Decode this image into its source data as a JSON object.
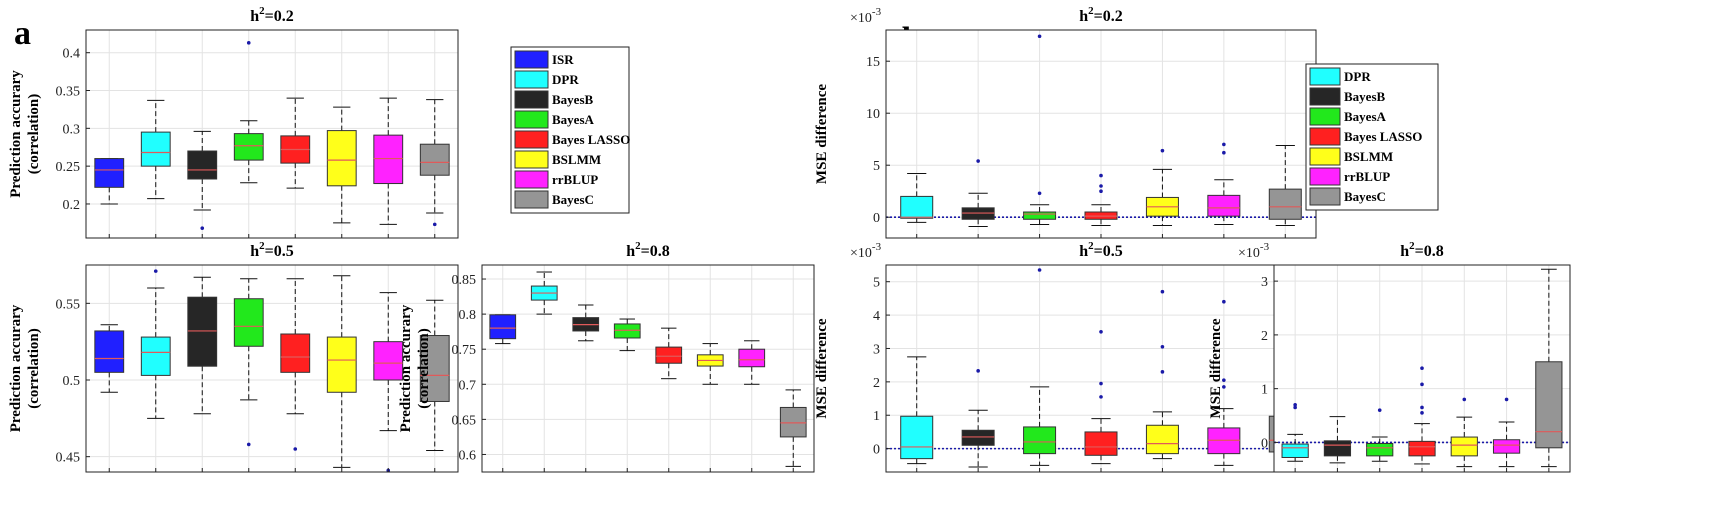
{
  "figure": {
    "panel_a_label": "a",
    "panel_b_label": "b"
  },
  "colors": {
    "ISR": "#2020ff",
    "DPR": "#20ffff",
    "BayesB": "#262626",
    "BayesA": "#22e81c",
    "Bayes LASSO": "#ff2020",
    "BSLMM": "#ffff1a",
    "rrBLUP": "#ff22ff",
    "BayesC": "#959595",
    "median": "#e05a5a",
    "outlier": "#1a1aa8",
    "zero_line": "#1a1aa8"
  },
  "legends": [
    {
      "id": "legend-a",
      "entries": [
        "ISR",
        "DPR",
        "BayesB",
        "BayesA",
        "Bayes LASSO",
        "BSLMM",
        "rrBLUP",
        "BayesC"
      ]
    },
    {
      "id": "legend-b",
      "entries": [
        "DPR",
        "BayesB",
        "BayesA",
        "Bayes LASSO",
        "BSLMM",
        "rrBLUP",
        "BayesC"
      ]
    }
  ],
  "chart_data": [
    {
      "id": "a-h02",
      "type": "box",
      "title_base": "h",
      "title_sup": "2",
      "title_rest": "=0.2",
      "ylabel_line1": "Prediction accurary",
      "ylabel_line2": "(correlation)",
      "ylim": [
        0.155,
        0.43
      ],
      "yticks": [
        0.2,
        0.25,
        0.3,
        0.35,
        0.4
      ],
      "exponent": "",
      "boxes": [
        {
          "name": "ISR",
          "wl": 0.2,
          "q1": 0.222,
          "med": 0.245,
          "q3": 0.26,
          "wh": 0.26,
          "out": []
        },
        {
          "name": "DPR",
          "wl": 0.207,
          "q1": 0.25,
          "med": 0.268,
          "q3": 0.295,
          "wh": 0.337,
          "out": []
        },
        {
          "name": "BayesB",
          "wl": 0.192,
          "q1": 0.233,
          "med": 0.245,
          "q3": 0.27,
          "wh": 0.296,
          "out": [
            0.168
          ]
        },
        {
          "name": "BayesA",
          "wl": 0.228,
          "q1": 0.258,
          "med": 0.277,
          "q3": 0.293,
          "wh": 0.31,
          "out": [
            0.413
          ]
        },
        {
          "name": "Bayes LASSO",
          "wl": 0.221,
          "q1": 0.254,
          "med": 0.272,
          "q3": 0.29,
          "wh": 0.34,
          "out": []
        },
        {
          "name": "BSLMM",
          "wl": 0.175,
          "q1": 0.224,
          "med": 0.258,
          "q3": 0.297,
          "wh": 0.328,
          "out": []
        },
        {
          "name": "rrBLUP",
          "wl": 0.173,
          "q1": 0.227,
          "med": 0.26,
          "q3": 0.291,
          "wh": 0.34,
          "out": []
        },
        {
          "name": "BayesC",
          "wl": 0.188,
          "q1": 0.238,
          "med": 0.255,
          "q3": 0.279,
          "wh": 0.338,
          "out": [
            0.173
          ]
        }
      ]
    },
    {
      "id": "a-h05",
      "type": "box",
      "title_base": "h",
      "title_sup": "2",
      "title_rest": "=0.5",
      "ylabel_line1": "Prediction accurary",
      "ylabel_line2": "(correlation)",
      "ylim": [
        0.44,
        0.575
      ],
      "yticks": [
        0.45,
        0.5,
        0.55
      ],
      "exponent": "",
      "boxes": [
        {
          "name": "ISR",
          "wl": 0.492,
          "q1": 0.505,
          "med": 0.514,
          "q3": 0.532,
          "wh": 0.536,
          "out": []
        },
        {
          "name": "DPR",
          "wl": 0.475,
          "q1": 0.503,
          "med": 0.518,
          "q3": 0.528,
          "wh": 0.56,
          "out": [
            0.571
          ]
        },
        {
          "name": "BayesB",
          "wl": 0.478,
          "q1": 0.509,
          "med": 0.532,
          "q3": 0.554,
          "wh": 0.567,
          "out": []
        },
        {
          "name": "BayesA",
          "wl": 0.487,
          "q1": 0.522,
          "med": 0.535,
          "q3": 0.553,
          "wh": 0.566,
          "out": [
            0.458
          ]
        },
        {
          "name": "Bayes LASSO",
          "wl": 0.478,
          "q1": 0.505,
          "med": 0.515,
          "q3": 0.53,
          "wh": 0.566,
          "out": [
            0.455
          ]
        },
        {
          "name": "BSLMM",
          "wl": 0.443,
          "q1": 0.492,
          "med": 0.513,
          "q3": 0.528,
          "wh": 0.568,
          "out": []
        },
        {
          "name": "rrBLUP",
          "wl": 0.467,
          "q1": 0.5,
          "med": 0.511,
          "q3": 0.525,
          "wh": 0.557,
          "out": [
            0.441
          ]
        },
        {
          "name": "BayesC",
          "wl": 0.454,
          "q1": 0.486,
          "med": 0.503,
          "q3": 0.529,
          "wh": 0.552,
          "out": []
        }
      ]
    },
    {
      "id": "a-h08",
      "type": "box",
      "title_base": "h",
      "title_sup": "2",
      "title_rest": "=0.8",
      "ylabel_line1": "Prediction accurary",
      "ylabel_line2": "(correlation)",
      "ylim": [
        0.575,
        0.87
      ],
      "yticks": [
        0.6,
        0.65,
        0.7,
        0.75,
        0.8,
        0.85
      ],
      "exponent": "",
      "boxes": [
        {
          "name": "ISR",
          "wl": 0.758,
          "q1": 0.765,
          "med": 0.78,
          "q3": 0.799,
          "wh": 0.799,
          "out": []
        },
        {
          "name": "DPR",
          "wl": 0.8,
          "q1": 0.82,
          "med": 0.83,
          "q3": 0.84,
          "wh": 0.86,
          "out": []
        },
        {
          "name": "BayesB",
          "wl": 0.762,
          "q1": 0.776,
          "med": 0.785,
          "q3": 0.795,
          "wh": 0.813,
          "out": []
        },
        {
          "name": "BayesA",
          "wl": 0.748,
          "q1": 0.766,
          "med": 0.777,
          "q3": 0.786,
          "wh": 0.793,
          "out": []
        },
        {
          "name": "Bayes LASSO",
          "wl": 0.708,
          "q1": 0.73,
          "med": 0.74,
          "q3": 0.753,
          "wh": 0.78,
          "out": []
        },
        {
          "name": "BSLMM",
          "wl": 0.7,
          "q1": 0.726,
          "med": 0.734,
          "q3": 0.742,
          "wh": 0.758,
          "out": []
        },
        {
          "name": "rrBLUP",
          "wl": 0.7,
          "q1": 0.725,
          "med": 0.735,
          "q3": 0.75,
          "wh": 0.762,
          "out": []
        },
        {
          "name": "BayesC",
          "wl": 0.583,
          "q1": 0.625,
          "med": 0.645,
          "q3": 0.667,
          "wh": 0.692,
          "out": []
        }
      ]
    },
    {
      "id": "b-h02",
      "type": "box",
      "title_base": "h",
      "title_sup": "2",
      "title_rest": "=0.2",
      "ylabel_line1": "MSE difference",
      "ylabel_line2": "",
      "ylim": [
        -2,
        18
      ],
      "yticks": [
        0,
        5,
        10,
        15
      ],
      "exponent": "×10",
      "exponent_power": "-3",
      "zero_line": 0,
      "boxes": [
        {
          "name": "DPR",
          "wl": -0.5,
          "q1": -0.1,
          "med": 0,
          "q3": 2,
          "wh": 4.2,
          "out": []
        },
        {
          "name": "BayesB",
          "wl": -0.9,
          "q1": -0.2,
          "med": 0.4,
          "q3": 0.9,
          "wh": 2.3,
          "out": [
            5.4
          ]
        },
        {
          "name": "BayesA",
          "wl": -0.7,
          "q1": -0.2,
          "med": 0.3,
          "q3": 0.5,
          "wh": 1.2,
          "out": [
            2.3,
            17.4
          ]
        },
        {
          "name": "Bayes LASSO",
          "wl": -0.8,
          "q1": -0.2,
          "med": 0.1,
          "q3": 0.5,
          "wh": 1.2,
          "out": [
            2.5,
            3,
            4
          ]
        },
        {
          "name": "BSLMM",
          "wl": -0.8,
          "q1": 0.1,
          "med": 1,
          "q3": 1.9,
          "wh": 4.6,
          "out": [
            6.4
          ]
        },
        {
          "name": "rrBLUP",
          "wl": -0.7,
          "q1": 0.1,
          "med": 0.9,
          "q3": 2.1,
          "wh": 3.6,
          "out": [
            6.2,
            7
          ]
        },
        {
          "name": "BayesC",
          "wl": -0.8,
          "q1": -0.2,
          "med": 1,
          "q3": 2.7,
          "wh": 6.9,
          "out": []
        }
      ]
    },
    {
      "id": "b-h05",
      "type": "box",
      "title_base": "h",
      "title_sup": "2",
      "title_rest": "=0.5",
      "ylabel_line1": "MSE difference",
      "ylabel_line2": "",
      "ylim": [
        -0.7,
        5.5
      ],
      "yticks": [
        0,
        1,
        2,
        3,
        4,
        5
      ],
      "exponent": "×10",
      "exponent_power": "-3",
      "zero_line": 0,
      "boxes": [
        {
          "name": "DPR",
          "wl": -0.45,
          "q1": -0.3,
          "med": 0.05,
          "q3": 0.97,
          "wh": 2.75,
          "out": []
        },
        {
          "name": "BayesB",
          "wl": -0.55,
          "q1": 0.1,
          "med": 0.35,
          "q3": 0.55,
          "wh": 1.15,
          "out": [
            2.33
          ]
        },
        {
          "name": "BayesA",
          "wl": -0.5,
          "q1": -0.15,
          "med": 0.2,
          "q3": 0.65,
          "wh": 1.85,
          "out": [
            5.35
          ]
        },
        {
          "name": "Bayes LASSO",
          "wl": -0.45,
          "q1": -0.2,
          "med": 0.05,
          "q3": 0.5,
          "wh": 0.9,
          "out": [
            1.55,
            1.95,
            3.5
          ]
        },
        {
          "name": "BSLMM",
          "wl": -0.3,
          "q1": -0.15,
          "med": 0.15,
          "q3": 0.7,
          "wh": 1.1,
          "out": [
            2.3,
            3.05,
            4.7
          ]
        },
        {
          "name": "rrBLUP",
          "wl": -0.5,
          "q1": -0.15,
          "med": 0.25,
          "q3": 0.62,
          "wh": 1.2,
          "out": [
            1.85,
            2.05,
            4.4
          ]
        },
        {
          "name": "BayesC",
          "wl": -0.5,
          "q1": -0.1,
          "med": 0.25,
          "q3": 0.97,
          "wh": 2.3,
          "out": []
        }
      ]
    },
    {
      "id": "b-h08",
      "type": "box",
      "title_base": "h",
      "title_sup": "2",
      "title_rest": "=0.8",
      "ylabel_line1": "MSE difference",
      "ylabel_line2": "",
      "ylim": [
        -0.55,
        3.3
      ],
      "yticks": [
        0,
        1,
        2,
        3
      ],
      "exponent": "×10",
      "exponent_power": "-3",
      "zero_line": 0,
      "boxes": [
        {
          "name": "DPR",
          "wl": -0.35,
          "q1": -0.28,
          "med": -0.1,
          "q3": -0.03,
          "wh": 0.15,
          "out": [
            0.65,
            0.7
          ]
        },
        {
          "name": "BayesB",
          "wl": -0.38,
          "q1": -0.25,
          "med": -0.05,
          "q3": 0.03,
          "wh": 0.48,
          "out": []
        },
        {
          "name": "BayesA",
          "wl": -0.35,
          "q1": -0.25,
          "med": -0.1,
          "q3": -0.02,
          "wh": 0.1,
          "out": [
            0.6
          ]
        },
        {
          "name": "Bayes LASSO",
          "wl": -0.4,
          "q1": -0.25,
          "med": -0.08,
          "q3": 0.02,
          "wh": 0.35,
          "out": [
            0.55,
            0.65,
            1.08,
            1.38
          ]
        },
        {
          "name": "BSLMM",
          "wl": -0.45,
          "q1": -0.25,
          "med": -0.05,
          "q3": 0.1,
          "wh": 0.47,
          "out": [
            0.8
          ]
        },
        {
          "name": "rrBLUP",
          "wl": -0.45,
          "q1": -0.2,
          "med": -0.05,
          "q3": 0.05,
          "wh": 0.38,
          "out": [
            0.8
          ]
        },
        {
          "name": "BayesC",
          "wl": -0.45,
          "q1": -0.1,
          "med": 0.2,
          "q3": 1.5,
          "wh": 3.22,
          "out": []
        }
      ]
    }
  ]
}
